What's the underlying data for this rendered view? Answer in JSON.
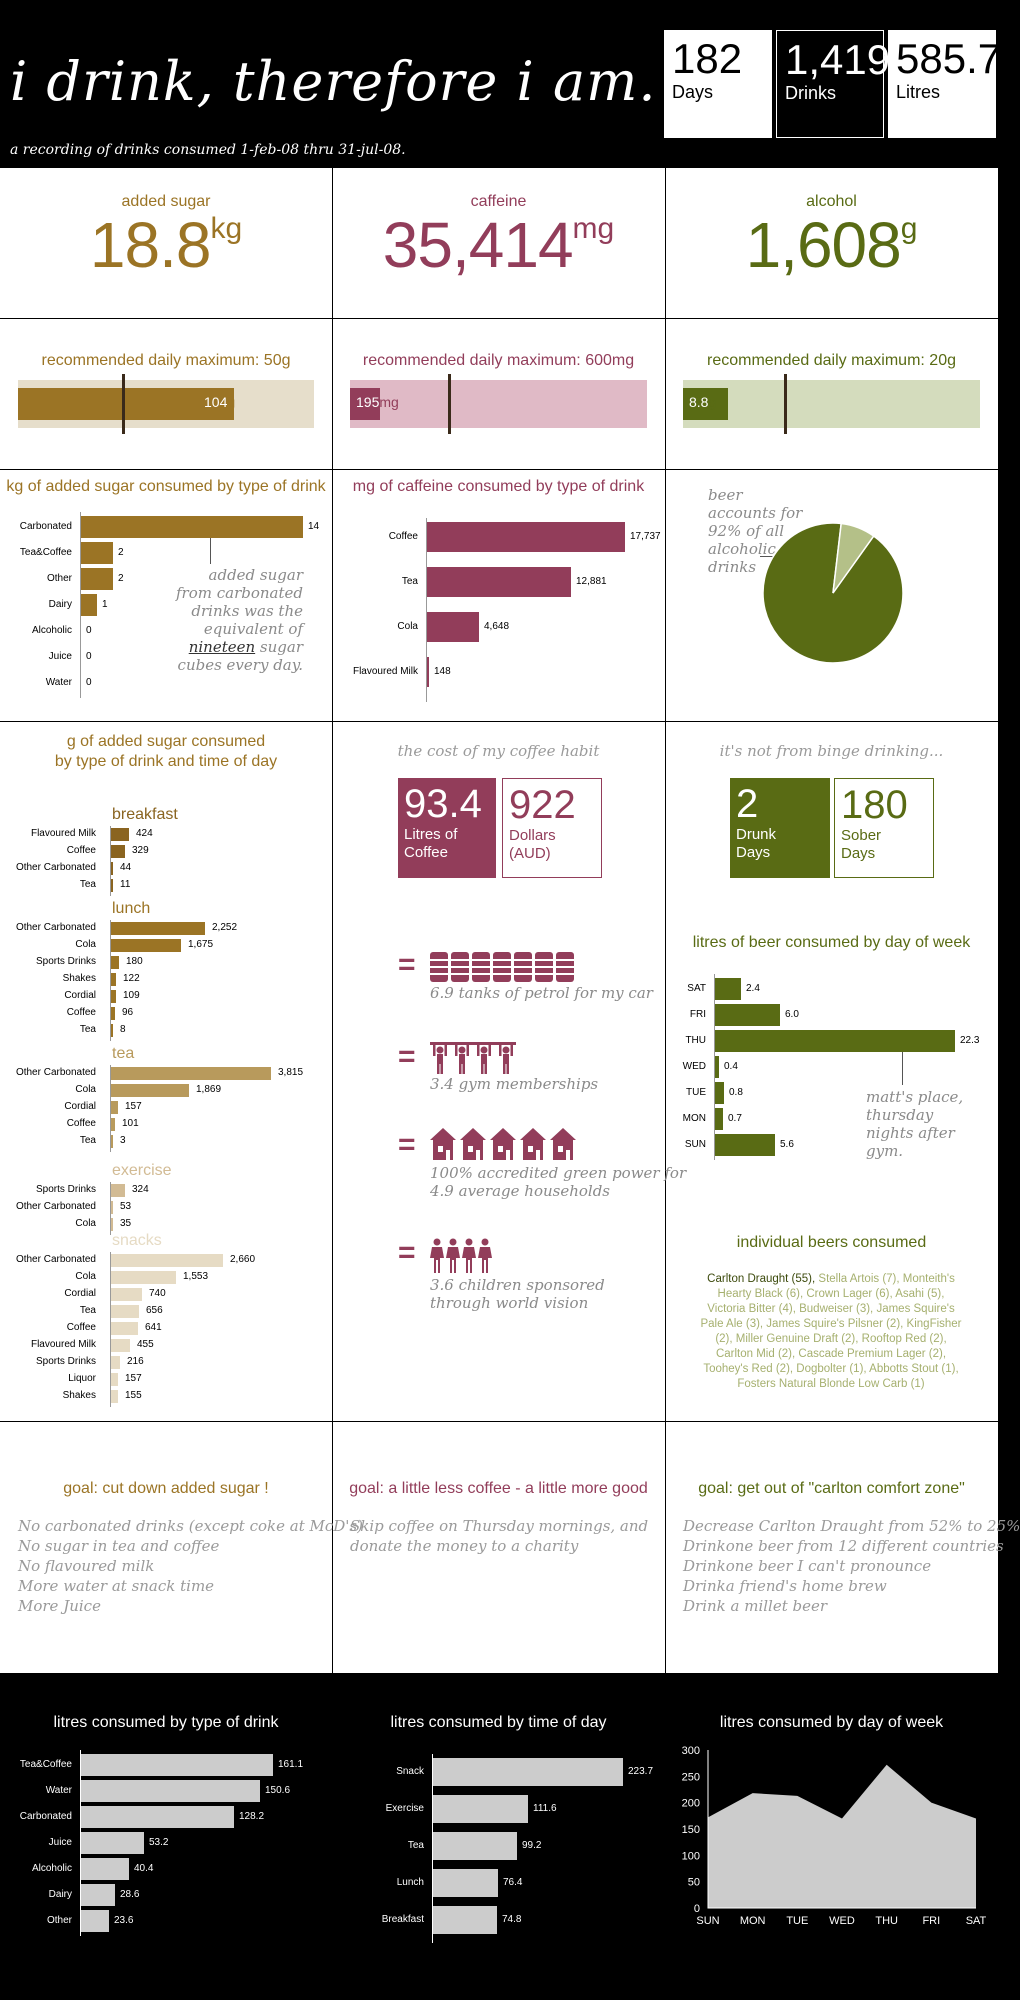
{
  "header": {
    "title": "i drink, therefore i am.",
    "subtitle": "a recording of drinks consumed 1-feb-08 thru 31-jul-08.",
    "stats": [
      {
        "value": "182",
        "label": "Days"
      },
      {
        "value": "1,419",
        "label": "Drinks"
      },
      {
        "value": "585.7",
        "label": "Litres"
      }
    ]
  },
  "totals": [
    {
      "label": "added sugar",
      "value": "18.8",
      "unit": "kg",
      "color": "#9b7425"
    },
    {
      "label": "caffeine",
      "value": "35,414",
      "unit": "mg",
      "color": "#923d5a"
    },
    {
      "label": "alcohol",
      "value": "1,608",
      "unit": "g",
      "color": "#596b14"
    }
  ],
  "daily": [
    {
      "title": "recommended daily maximum: 50g",
      "value": "104",
      "unit": "g",
      "fill": 0.73,
      "marker": 0.35,
      "color": "#9b7425",
      "bg": "#e6decb"
    },
    {
      "title": "recommended daily maximum: 600mg",
      "value": "195",
      "unit": "mg",
      "fill": 0.1,
      "marker": 0.33,
      "color": "#923d5a",
      "bg": "#e0bac6"
    },
    {
      "title": "recommended daily maximum: 20g",
      "value": "8.8",
      "unit": "g",
      "fill": 0.15,
      "marker": 0.34,
      "color": "#596b14",
      "bg": "#d4dcbd"
    }
  ],
  "pie_note": "beer accounts for 92% of all alcoholic drinks",
  "sugar_note": {
    "line1": "added sugar",
    "line2": "from carbonated",
    "line3": "drinks was the",
    "line4": "equivalent of",
    "line5a": "nineteen",
    "line5b": " sugar",
    "line6": "cubes every day."
  },
  "cost": {
    "title": "the cost of my coffee habit",
    "box1": {
      "value": "93.4",
      "label1": "Litres of",
      "label2": "Coffee"
    },
    "box2": {
      "value": "922",
      "label1": "Dollars",
      "label2": "(AUD)"
    },
    "equivs": [
      {
        "line1": "6.9 tanks of petrol for my car",
        "line2": ""
      },
      {
        "line1": "3.4 gym memberships",
        "line2": ""
      },
      {
        "line1": "100% accredited green power for",
        "line2": "4.9 average households"
      },
      {
        "line1": "3.6 children sponsored",
        "line2": "through world vision"
      }
    ],
    "equals": "="
  },
  "binge": {
    "title": "it's not from binge drinking...",
    "box1": {
      "value": "2",
      "label1": "Drunk",
      "label2": "Days"
    },
    "box2": {
      "value": "180",
      "label1": "Sober",
      "label2": "Days"
    }
  },
  "beer_note": "matt's place, thursday nights after gym.",
  "beers": {
    "title": "individual beers consumed",
    "main": "Carlton Draught (55),",
    "rest": " Stella Artois (7), Monteith's Hearty Black (6), Crown Lager (6), Asahi (5), Victoria Bitter (4), Budweiser (3), James Squire's Pale Ale (3), James Squire's Pilsner (2), KingFisher (2), Miller Genuine Draft (2), Rooftop Red (2), Carlton Mid (2), Cascade Premium Lager (2), Toohey's Red (2), Dogbolter (1), Abbotts Stout (1), Fosters Natural Blonde Low Carb (1)"
  },
  "goals": [
    {
      "title": "goal: cut down added sugar !",
      "color": "#9b7425",
      "items": [
        "No carbonated drinks (except coke at McD's)",
        "No sugar in tea and coffee",
        "No flavoured milk",
        "More water at snack time",
        "More Juice"
      ]
    },
    {
      "title": "goal: a little less coffee - a little more good",
      "color": "#923d5a",
      "items": [
        "Skip coffee on Thursday mornings, and",
        "donate the money to a charity"
      ]
    },
    {
      "title": "goal: get out of \"carlton comfort zone\"",
      "color": "#596b14",
      "items": [
        "Decrease Carlton Draught from 52% to 25%",
        "Drinkone beer from 12 different countries",
        "Drinkone beer I can't pronounce",
        "Drinka friend's home brew",
        "Drink a millet beer"
      ]
    }
  ],
  "chart_data": [
    {
      "type": "bar",
      "title": "kg of added sugar consumed by type of drink",
      "categories": [
        "Carbonated",
        "Tea&Coffee",
        "Other",
        "Dairy",
        "Alcoholic",
        "Juice",
        "Water"
      ],
      "values": [
        14,
        2,
        2,
        1,
        0,
        0,
        0
      ],
      "color": "#9b7425"
    },
    {
      "type": "bar",
      "title": "mg of caffeine consumed by type of drink",
      "categories": [
        "Coffee",
        "Tea",
        "Cola",
        "Flavoured Milk"
      ],
      "values": [
        17737,
        12881,
        4648,
        148
      ],
      "labels": [
        "17,737",
        "12,881",
        "4,648",
        "148"
      ],
      "color": "#923d5a"
    },
    {
      "type": "pie",
      "slices": [
        {
          "label": "beer",
          "value": 92,
          "color": "#596b14"
        },
        {
          "label": "other",
          "value": 8,
          "color": "#b4c088"
        }
      ]
    },
    {
      "type": "bar",
      "title": "g of added sugar consumed by type of drink and time of day",
      "title_line1": "g of added sugar consumed",
      "title_line2": "by type of drink and time of day",
      "groups": [
        {
          "name": "breakfast",
          "color": "#8a6420",
          "categories": [
            "Flavoured Milk",
            "Coffee",
            "Other Carbonated",
            "Tea"
          ],
          "values": [
            424,
            329,
            44,
            11
          ],
          "labels": [
            "424",
            "329",
            "44",
            "11"
          ]
        },
        {
          "name": "lunch",
          "color": "#9b7425",
          "categories": [
            "Other Carbonated",
            "Cola",
            "Sports Drinks",
            "Shakes",
            "Cordial",
            "Coffee",
            "Tea"
          ],
          "values": [
            2252,
            1675,
            180,
            122,
            109,
            96,
            8
          ],
          "labels": [
            "2,252",
            "1,675",
            "180",
            "122",
            "109",
            "96",
            "8"
          ]
        },
        {
          "name": "tea",
          "color": "#b89a5c",
          "categories": [
            "Other Carbonated",
            "Cola",
            "Cordial",
            "Coffee",
            "Tea"
          ],
          "values": [
            3815,
            1869,
            157,
            101,
            3
          ],
          "labels": [
            "3,815",
            "1,869",
            "157",
            "101",
            "3"
          ]
        },
        {
          "name": "exercise",
          "color": "#d2bb94",
          "categories": [
            "Sports Drinks",
            "Other Carbonated",
            "Cola"
          ],
          "values": [
            324,
            53,
            35
          ],
          "labels": [
            "324",
            "53",
            "35"
          ]
        },
        {
          "name": "snacks",
          "color": "#e6dbc4",
          "categories": [
            "Other Carbonated",
            "Cola",
            "Cordial",
            "Tea",
            "Coffee",
            "Flavoured Milk",
            "Sports Drinks",
            "Liquor",
            "Shakes"
          ],
          "values": [
            2660,
            1553,
            740,
            656,
            641,
            455,
            216,
            157,
            155
          ],
          "labels": [
            "2,660",
            "1,553",
            "740",
            "656",
            "641",
            "455",
            "216",
            "157",
            "155"
          ]
        }
      ]
    },
    {
      "type": "bar",
      "title": "litres of beer consumed by day of week",
      "categories": [
        "SAT",
        "FRI",
        "THU",
        "WED",
        "TUE",
        "MON",
        "SUN"
      ],
      "values": [
        2.4,
        6.0,
        22.3,
        0.4,
        0.8,
        0.7,
        5.6
      ],
      "labels": [
        "2.4",
        "6.0",
        "22.3",
        "0.4",
        "0.8",
        "0.7",
        "5.6"
      ],
      "color": "#596b14"
    },
    {
      "type": "bar",
      "title": "litres consumed by type of drink",
      "categories": [
        "Tea&Coffee",
        "Water",
        "Carbonated",
        "Juice",
        "Alcoholic",
        "Dairy",
        "Other"
      ],
      "values": [
        161.1,
        150.6,
        128.2,
        53.2,
        40.4,
        28.6,
        23.6
      ],
      "labels": [
        "161.1",
        "150.6",
        "128.2",
        "53.2",
        "40.4",
        "28.6",
        "23.6"
      ],
      "color": "#cccccc"
    },
    {
      "type": "bar",
      "title": "litres consumed by time of day",
      "categories": [
        "Snack",
        "Exercise",
        "Tea",
        "Lunch",
        "Breakfast"
      ],
      "values": [
        223.7,
        111.6,
        99.2,
        76.4,
        74.8
      ],
      "labels": [
        "223.7",
        "111.6",
        "99.2",
        "76.4",
        "74.8"
      ],
      "color": "#cccccc"
    },
    {
      "type": "area",
      "title": "litres consumed by day of week",
      "x": [
        "SUN",
        "MON",
        "TUE",
        "WED",
        "THU",
        "FRI",
        "SAT"
      ],
      "values": [
        172,
        218,
        213,
        170,
        272,
        200,
        170
      ],
      "ylim": [
        0,
        300
      ],
      "yticks": [
        "0",
        "50",
        "100",
        "150",
        "200",
        "250",
        "300"
      ],
      "color": "#cccccc"
    }
  ]
}
